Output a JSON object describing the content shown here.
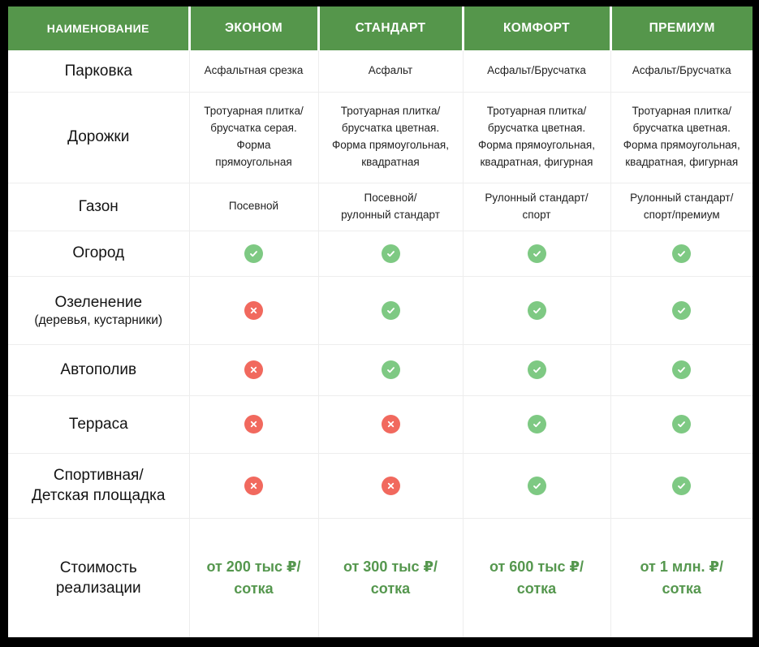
{
  "colors": {
    "header_bg": "#55964B",
    "header_text": "#FFFFFF",
    "check": "#7EC983",
    "cross": "#F1695E",
    "price_text": "#55974E",
    "grid_line": "#EDEDED",
    "body_text": "#1F1F1F",
    "frame": "#000000"
  },
  "icons": {
    "check": {
      "name": "check-icon",
      "glyph": "✓"
    },
    "cross": {
      "name": "cross-icon",
      "glyph": "✕"
    }
  },
  "table": {
    "columns": [
      {
        "label": "НАИМЕНОВАНИЕ"
      },
      {
        "label": "ЭКОНОМ"
      },
      {
        "label": "СТАНДАРТ"
      },
      {
        "label": "КОМФОРТ"
      },
      {
        "label": "ПРЕМИУМ"
      }
    ],
    "rows": [
      {
        "name": "Парковка",
        "cells": [
          {
            "type": "text",
            "text": "Асфальтная срезка"
          },
          {
            "type": "text",
            "text": "Асфальт"
          },
          {
            "type": "text",
            "text": "Асфальт/Брусчатка"
          },
          {
            "type": "text",
            "text": "Асфальт/Брусчатка"
          }
        ]
      },
      {
        "name": "Дорожки",
        "cells": [
          {
            "type": "text",
            "text": "Тротуарная плитка/\nбрусчатка серая.\nФорма\nпрямоугольная"
          },
          {
            "type": "text",
            "text": "Тротуарная плитка/\nбрусчатка цветная.\nФорма прямоугольная,\nквадратная"
          },
          {
            "type": "text",
            "text": "Тротуарная плитка/\nбрусчатка цветная.\nФорма прямоугольная,\nквадратная, фигурная"
          },
          {
            "type": "text",
            "text": "Тротуарная плитка/\nбрусчатка цветная.\nФорма прямоугольная,\nквадратная, фигурная"
          }
        ]
      },
      {
        "name": "Газон",
        "cells": [
          {
            "type": "text",
            "text": "Посевной"
          },
          {
            "type": "text",
            "text": "Посевной/\nрулонный стандарт"
          },
          {
            "type": "text",
            "text": "Рулонный стандарт/\nспорт"
          },
          {
            "type": "text",
            "text": "Рулонный стандарт/\nспорт/премиум"
          }
        ]
      },
      {
        "name": "Огород",
        "cells": [
          {
            "type": "check"
          },
          {
            "type": "check"
          },
          {
            "type": "check"
          },
          {
            "type": "check"
          }
        ]
      },
      {
        "name": "Озеленение",
        "subname": "(деревья, кустарники)",
        "cells": [
          {
            "type": "cross"
          },
          {
            "type": "check"
          },
          {
            "type": "check"
          },
          {
            "type": "check"
          }
        ]
      },
      {
        "name": "Автополив",
        "cells": [
          {
            "type": "cross"
          },
          {
            "type": "check"
          },
          {
            "type": "check"
          },
          {
            "type": "check"
          }
        ]
      },
      {
        "name": "Терраса",
        "cells": [
          {
            "type": "cross"
          },
          {
            "type": "cross"
          },
          {
            "type": "check"
          },
          {
            "type": "check"
          }
        ]
      },
      {
        "name": "Спортивная/\nДетская площадка",
        "cells": [
          {
            "type": "cross"
          },
          {
            "type": "cross"
          },
          {
            "type": "check"
          },
          {
            "type": "check"
          }
        ]
      },
      {
        "name": "Стоимость\nреализации",
        "cells": [
          {
            "type": "price",
            "text": "от 200 тыс ₽/\nсотка"
          },
          {
            "type": "price",
            "text": "от 300 тыс ₽/\nсотка"
          },
          {
            "type": "price",
            "text": "от 600 тыс ₽/\nсотка"
          },
          {
            "type": "price",
            "text": "от 1 млн. ₽/\nсотка"
          }
        ]
      }
    ]
  }
}
